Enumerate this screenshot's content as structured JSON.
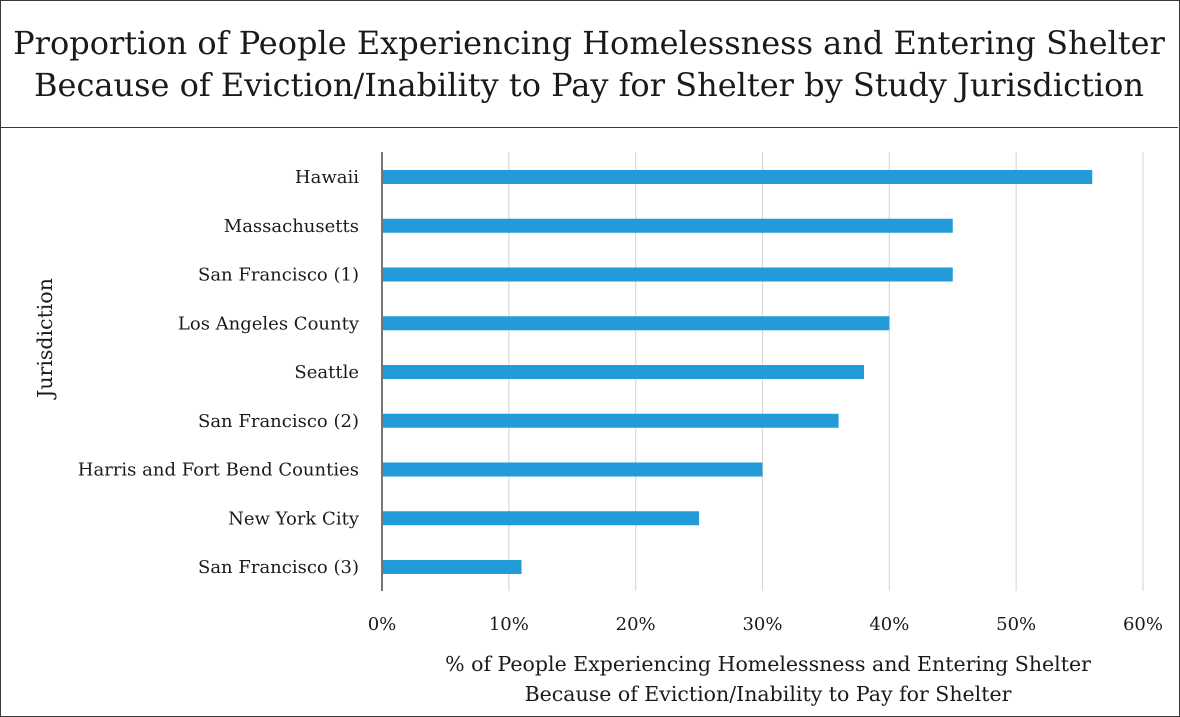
{
  "chart_data": {
    "type": "bar",
    "orientation": "horizontal",
    "title_lines": [
      "Proportion of People Experiencing Homelessness and Entering Shelter",
      "Because of Eviction/Inability to Pay for Shelter by Study Jurisdiction"
    ],
    "xlabel_lines": [
      "% of People Experiencing Homelessness and Entering Shelter",
      "Because of Eviction/Inability to Pay for Shelter"
    ],
    "ylabel": "Jurisdiction",
    "categories": [
      "Hawaii",
      "Massachusetts",
      "San Francisco (1)",
      "Los Angeles County",
      "Seattle",
      "San Francisco (2)",
      "Harris and Fort Bend Counties",
      "New York City",
      "San Francisco (3)"
    ],
    "values": [
      56,
      45,
      45,
      40,
      38,
      36,
      30,
      25,
      11
    ],
    "value_unit": "%",
    "xlim": [
      0,
      60
    ],
    "x_ticks": [
      0,
      10,
      20,
      30,
      40,
      50,
      60
    ],
    "x_tick_labels": [
      "0%",
      "10%",
      "20%",
      "30%",
      "40%",
      "50%",
      "60%"
    ],
    "grid": "vertical",
    "legend": "none",
    "bar_color": "#229bd8",
    "grid_color": "#d9d9d9"
  }
}
